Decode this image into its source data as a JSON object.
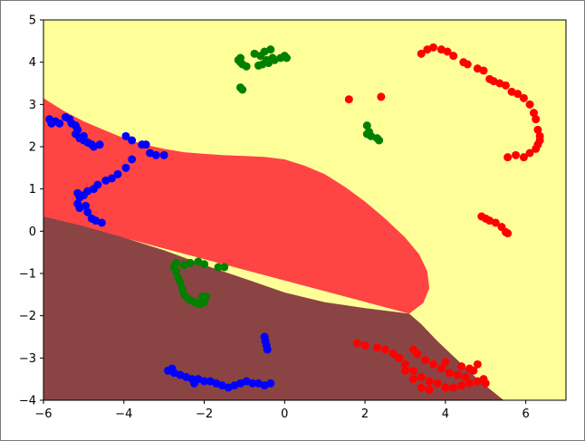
{
  "chart_data": {
    "type": "scatter",
    "title": "",
    "xlabel": "",
    "ylabel": "",
    "xlim": [
      -6,
      7
    ],
    "ylim": [
      -4,
      5
    ],
    "xticks": [
      "−6",
      "−4",
      "−2",
      "0",
      "2",
      "4",
      "6"
    ],
    "yticks": [
      "−4",
      "−3",
      "−2",
      "−1",
      "0",
      "1",
      "2",
      "3",
      "4",
      "5"
    ],
    "grid": false,
    "regions": [
      {
        "class": "yellow",
        "color": "#ffff99",
        "polygon": [
          [
            -6,
            -4
          ],
          [
            7,
            -4
          ],
          [
            7,
            5
          ],
          [
            -6,
            5
          ]
        ]
      },
      {
        "class": "red",
        "color": "#ff4444",
        "polygon": [
          [
            -6,
            3.15
          ],
          [
            -5.5,
            2.85
          ],
          [
            -5,
            2.6
          ],
          [
            -4.5,
            2.4
          ],
          [
            -4,
            2.2
          ],
          [
            -3.5,
            2.05
          ],
          [
            -3,
            1.95
          ],
          [
            -2.5,
            1.87
          ],
          [
            -2,
            1.83
          ],
          [
            -1.5,
            1.8
          ],
          [
            -1,
            1.78
          ],
          [
            -0.5,
            1.76
          ],
          [
            0,
            1.7
          ],
          [
            0.5,
            1.55
          ],
          [
            1,
            1.35
          ],
          [
            1.5,
            1.05
          ],
          [
            2,
            0.7
          ],
          [
            2.5,
            0.3
          ],
          [
            3,
            -0.15
          ],
          [
            3.35,
            -0.55
          ],
          [
            3.55,
            -0.95
          ],
          [
            3.6,
            -1.35
          ],
          [
            3.45,
            -1.7
          ],
          [
            3.1,
            -1.95
          ],
          [
            -6,
            0.35
          ]
        ]
      },
      {
        "class": "brown",
        "color": "#8b4444",
        "polygon": [
          [
            -6,
            0.35
          ],
          [
            -5,
            0.12
          ],
          [
            -4,
            -0.15
          ],
          [
            -3,
            -0.45
          ],
          [
            -2,
            -0.8
          ],
          [
            -1,
            -1.12
          ],
          [
            0,
            -1.45
          ],
          [
            1,
            -1.68
          ],
          [
            2,
            -1.82
          ],
          [
            3.1,
            -1.95
          ],
          [
            3.4,
            -2.2
          ],
          [
            3.8,
            -2.6
          ],
          [
            4.3,
            -3.05
          ],
          [
            4.8,
            -3.5
          ],
          [
            5.45,
            -4
          ],
          [
            -6,
            -4
          ]
        ]
      }
    ],
    "series": [
      {
        "color": "#ff0000",
        "points": [
          [
            3.4,
            4.2
          ],
          [
            3.55,
            4.3
          ],
          [
            3.7,
            4.35
          ],
          [
            3.9,
            4.3
          ],
          [
            4.05,
            4.25
          ],
          [
            4.2,
            4.15
          ],
          [
            4.45,
            4.0
          ],
          [
            4.55,
            3.95
          ],
          [
            4.8,
            3.85
          ],
          [
            4.95,
            3.8
          ],
          [
            5.1,
            3.6
          ],
          [
            5.2,
            3.55
          ],
          [
            5.35,
            3.5
          ],
          [
            5.5,
            3.45
          ],
          [
            5.65,
            3.3
          ],
          [
            5.8,
            3.25
          ],
          [
            5.95,
            3.15
          ],
          [
            6.1,
            3.0
          ],
          [
            6.2,
            2.8
          ],
          [
            6.25,
            2.65
          ],
          [
            6.3,
            2.4
          ],
          [
            6.35,
            2.25
          ],
          [
            6.35,
            2.15
          ],
          [
            6.3,
            2.05
          ],
          [
            6.25,
            1.95
          ],
          [
            6.1,
            1.85
          ],
          [
            5.95,
            1.75
          ],
          [
            5.75,
            1.8
          ],
          [
            5.55,
            1.75
          ],
          [
            1.6,
            3.12
          ],
          [
            2.4,
            3.18
          ],
          [
            4.9,
            0.35
          ],
          [
            5.0,
            0.3
          ],
          [
            5.1,
            0.25
          ],
          [
            5.25,
            0.2
          ],
          [
            5.4,
            0.1
          ],
          [
            5.5,
            -0.02
          ],
          [
            5.55,
            -0.05
          ],
          [
            1.8,
            -2.65
          ],
          [
            2.0,
            -2.7
          ],
          [
            2.3,
            -2.75
          ],
          [
            2.5,
            -2.8
          ],
          [
            2.7,
            -2.9
          ],
          [
            2.85,
            -3.0
          ],
          [
            3.0,
            -3.15
          ],
          [
            3.2,
            -3.3
          ],
          [
            3.4,
            -3.45
          ],
          [
            3.6,
            -3.55
          ],
          [
            3.8,
            -3.6
          ],
          [
            4.0,
            -3.7
          ],
          [
            4.2,
            -3.7
          ],
          [
            4.4,
            -3.65
          ],
          [
            4.6,
            -3.6
          ],
          [
            4.8,
            -3.55
          ],
          [
            4.95,
            -3.5
          ],
          [
            5.0,
            -3.6
          ],
          [
            3.2,
            -2.8
          ],
          [
            3.3,
            -2.9
          ],
          [
            3.5,
            -3.05
          ],
          [
            3.7,
            -3.15
          ],
          [
            3.9,
            -3.25
          ],
          [
            4.1,
            -3.35
          ],
          [
            4.3,
            -3.4
          ],
          [
            4.5,
            -3.45
          ],
          [
            4.7,
            -3.3
          ],
          [
            4.8,
            -3.15
          ],
          [
            3.0,
            -3.3
          ],
          [
            3.2,
            -3.5
          ],
          [
            3.4,
            -3.7
          ],
          [
            3.6,
            -3.75
          ],
          [
            4.6,
            -3.25
          ],
          [
            4.4,
            -3.2
          ],
          [
            4.0,
            -3.1
          ]
        ]
      },
      {
        "color": "#008000",
        "points": [
          [
            -1.15,
            4.05
          ],
          [
            -1.1,
            4.0
          ],
          [
            -1.05,
            3.95
          ],
          [
            -1.1,
            4.1
          ],
          [
            -0.95,
            3.9
          ],
          [
            -0.75,
            4.2
          ],
          [
            -0.6,
            4.15
          ],
          [
            -0.5,
            4.25
          ],
          [
            -0.45,
            4.05
          ],
          [
            -0.35,
            4.3
          ],
          [
            -0.3,
            4.1
          ],
          [
            -0.4,
            3.98
          ],
          [
            -0.55,
            3.95
          ],
          [
            -0.65,
            3.92
          ],
          [
            -0.45,
            4.0
          ],
          [
            -0.25,
            4.05
          ],
          [
            0.0,
            4.15
          ],
          [
            0.05,
            4.1
          ],
          [
            -0.1,
            4.1
          ],
          [
            -1.1,
            3.4
          ],
          [
            -1.05,
            3.35
          ],
          [
            2.05,
            2.5
          ],
          [
            2.1,
            2.35
          ],
          [
            2.15,
            2.25
          ],
          [
            2.3,
            2.2
          ],
          [
            2.35,
            2.15
          ],
          [
            2.05,
            2.3
          ],
          [
            -2.75,
            -0.85
          ],
          [
            -2.7,
            -0.95
          ],
          [
            -2.65,
            -1.1
          ],
          [
            -2.6,
            -1.2
          ],
          [
            -2.55,
            -1.35
          ],
          [
            -2.5,
            -1.5
          ],
          [
            -2.4,
            -1.6
          ],
          [
            -2.3,
            -1.65
          ],
          [
            -2.2,
            -1.7
          ],
          [
            -2.1,
            -1.72
          ],
          [
            -2.0,
            -1.68
          ],
          [
            -1.95,
            -1.55
          ],
          [
            -2.05,
            -1.55
          ],
          [
            -2.7,
            -0.75
          ],
          [
            -2.5,
            -0.8
          ],
          [
            -2.35,
            -0.75
          ],
          [
            -2.15,
            -0.72
          ],
          [
            -2.0,
            -0.78
          ],
          [
            -1.65,
            -0.85
          ],
          [
            -1.5,
            -0.85
          ]
        ]
      },
      {
        "color": "#0000ff",
        "points": [
          [
            -5.85,
            2.65
          ],
          [
            -5.8,
            2.55
          ],
          [
            -5.7,
            2.6
          ],
          [
            -5.6,
            2.55
          ],
          [
            -5.45,
            2.7
          ],
          [
            -5.35,
            2.65
          ],
          [
            -5.3,
            2.55
          ],
          [
            -5.2,
            2.5
          ],
          [
            -5.15,
            2.4
          ],
          [
            -5.2,
            2.3
          ],
          [
            -5.1,
            2.2
          ],
          [
            -5.0,
            2.15
          ],
          [
            -4.9,
            2.1
          ],
          [
            -4.8,
            2.05
          ],
          [
            -4.75,
            2.0
          ],
          [
            -4.6,
            2.05
          ],
          [
            -5.0,
            2.25
          ],
          [
            -3.95,
            2.25
          ],
          [
            -3.8,
            2.15
          ],
          [
            -3.55,
            2.05
          ],
          [
            -3.45,
            2.05
          ],
          [
            -3.35,
            1.85
          ],
          [
            -3.2,
            1.8
          ],
          [
            -3.0,
            1.8
          ],
          [
            -3.8,
            1.7
          ],
          [
            -3.95,
            1.5
          ],
          [
            -4.15,
            1.35
          ],
          [
            -4.3,
            1.25
          ],
          [
            -4.45,
            1.2
          ],
          [
            -4.65,
            1.1
          ],
          [
            -4.75,
            1.0
          ],
          [
            -4.9,
            0.95
          ],
          [
            -5.0,
            0.85
          ],
          [
            -5.1,
            0.8
          ],
          [
            -5.15,
            0.65
          ],
          [
            -5.15,
            0.9
          ],
          [
            -4.95,
            0.6
          ],
          [
            -4.9,
            0.45
          ],
          [
            -4.8,
            0.3
          ],
          [
            -4.7,
            0.25
          ],
          [
            -4.55,
            0.2
          ],
          [
            -5.1,
            0.55
          ],
          [
            -0.5,
            -2.5
          ],
          [
            -0.48,
            -2.6
          ],
          [
            -0.45,
            -2.7
          ],
          [
            -0.43,
            -2.8
          ],
          [
            -2.75,
            -3.35
          ],
          [
            -2.6,
            -3.4
          ],
          [
            -2.45,
            -3.45
          ],
          [
            -2.3,
            -3.5
          ],
          [
            -2.15,
            -3.5
          ],
          [
            -2.0,
            -3.55
          ],
          [
            -1.85,
            -3.55
          ],
          [
            -1.7,
            -3.6
          ],
          [
            -1.55,
            -3.65
          ],
          [
            -1.4,
            -3.7
          ],
          [
            -1.25,
            -3.65
          ],
          [
            -1.1,
            -3.6
          ],
          [
            -0.95,
            -3.55
          ],
          [
            -0.8,
            -3.6
          ],
          [
            -0.65,
            -3.6
          ],
          [
            -0.5,
            -3.65
          ],
          [
            -0.35,
            -3.6
          ],
          [
            -2.8,
            -3.25
          ],
          [
            -2.25,
            -3.6
          ],
          [
            -2.9,
            -3.3
          ]
        ]
      }
    ]
  }
}
